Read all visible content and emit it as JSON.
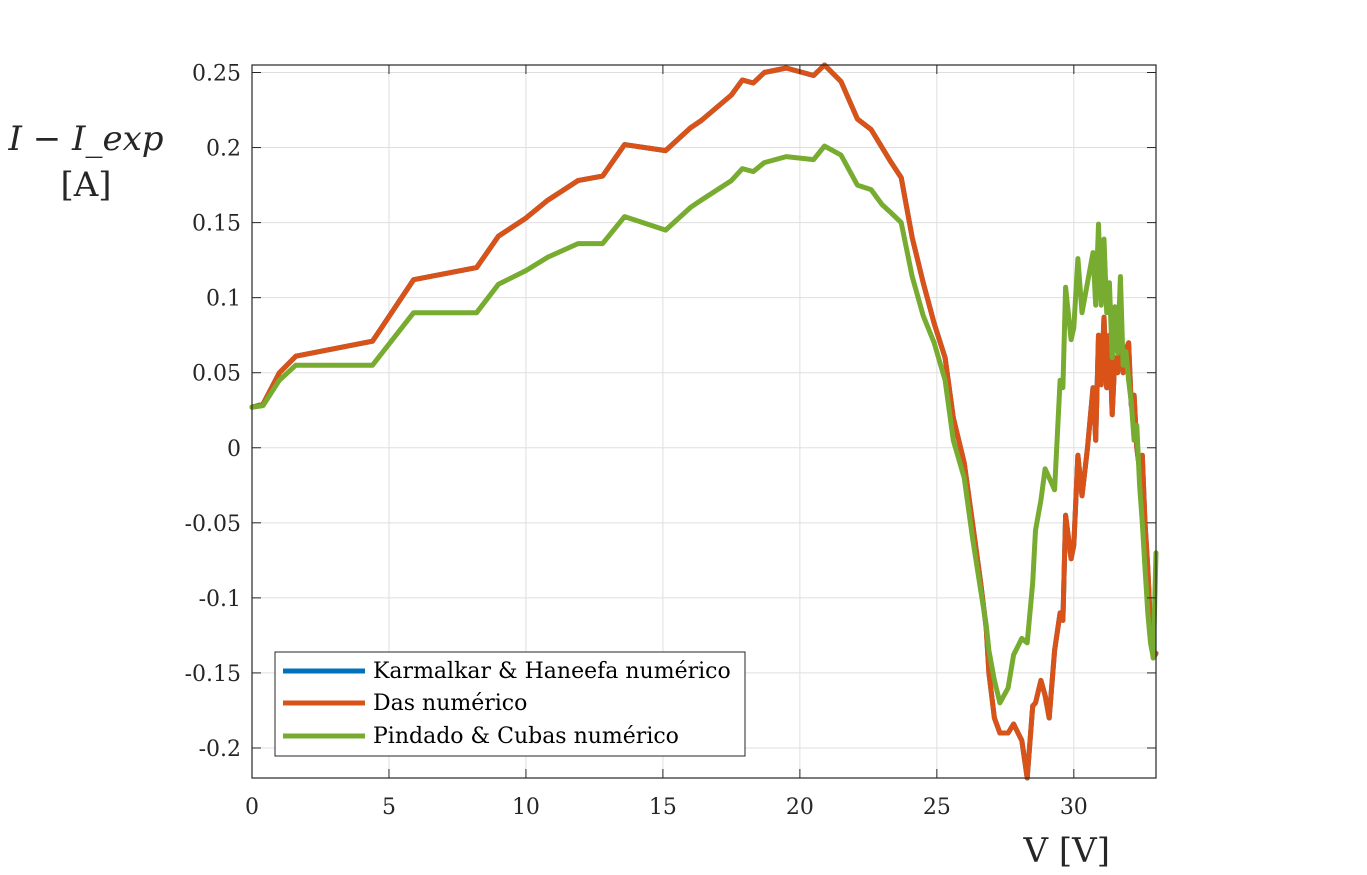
{
  "chart_data": {
    "type": "line",
    "title": "",
    "xlabel": "V [V]",
    "ylabel": [
      "I − I_exp",
      "[A]"
    ],
    "xlim": [
      0,
      33
    ],
    "ylim": [
      -0.22,
      0.255
    ],
    "x_ticks": [
      0,
      5,
      10,
      15,
      20,
      25,
      30
    ],
    "y_ticks": [
      -0.2,
      -0.15,
      -0.1,
      -0.05,
      0,
      0.05,
      0.1,
      0.15,
      0.2,
      0.25
    ],
    "x_tick_labels": [
      "0",
      "5",
      "10",
      "15",
      "20",
      "25",
      "30"
    ],
    "y_tick_labels": [
      "-0.2",
      "-0.15",
      "-0.1",
      "-0.05",
      "0",
      "0.05",
      "0.1",
      "0.15",
      "0.2",
      "0.25"
    ],
    "grid": true,
    "legend_position": "bottom-left",
    "series": [
      {
        "name": "Karmalkar & Haneefa numérico",
        "color": "#0072bd",
        "x": [
          0.0,
          0.4,
          1.0,
          1.6,
          4.4,
          5.9,
          8.2,
          9.0,
          10.0,
          10.8,
          11.9,
          12.8,
          13.6,
          15.1,
          16.0,
          16.4,
          17.5,
          17.9,
          18.3,
          18.7,
          19.5,
          20.5,
          20.9,
          21.5,
          22.1,
          22.6,
          23.0,
          23.3,
          23.7,
          24.1,
          24.5,
          24.9,
          25.3,
          25.6,
          26.0,
          26.3,
          26.6,
          26.8,
          26.9,
          27.1,
          27.3,
          27.6,
          27.8,
          28.1,
          28.3,
          28.5,
          28.6,
          28.8,
          28.95,
          29.1,
          29.3,
          29.5,
          29.6,
          29.7,
          29.9,
          30.0,
          30.15,
          30.3,
          30.5,
          30.7,
          30.8,
          30.9,
          31.0,
          31.1,
          31.2,
          31.3,
          31.4,
          31.5,
          31.6,
          31.7,
          31.8,
          31.9,
          32.0,
          32.1,
          32.2,
          32.3,
          32.4,
          32.5,
          32.6,
          32.7,
          32.8,
          32.9,
          33.0
        ],
        "y": [
          0.027,
          0.029,
          0.05,
          0.061,
          0.071,
          0.112,
          0.12,
          0.141,
          0.153,
          0.165,
          0.178,
          0.181,
          0.202,
          0.198,
          0.213,
          0.218,
          0.235,
          0.245,
          0.243,
          0.25,
          0.253,
          0.248,
          0.255,
          0.244,
          0.219,
          0.212,
          0.2,
          0.191,
          0.18,
          0.14,
          0.11,
          0.083,
          0.06,
          0.02,
          -0.01,
          -0.05,
          -0.09,
          -0.12,
          -0.15,
          -0.18,
          -0.19,
          -0.19,
          -0.184,
          -0.195,
          -0.22,
          -0.172,
          -0.17,
          -0.155,
          -0.165,
          -0.18,
          -0.135,
          -0.11,
          -0.115,
          -0.045,
          -0.074,
          -0.065,
          -0.005,
          -0.032,
          0.0,
          0.04,
          0.005,
          0.075,
          0.042,
          0.087,
          0.04,
          0.075,
          0.022,
          0.06,
          0.05,
          0.07,
          0.05,
          0.065,
          0.07,
          0.028,
          0.035,
          0.0,
          -0.015,
          -0.005,
          -0.05,
          -0.08,
          -0.12,
          -0.14,
          -0.137
        ]
      },
      {
        "name": "Das numérico",
        "color": "#d95319",
        "x": [
          0.0,
          0.4,
          1.0,
          1.6,
          4.4,
          5.9,
          8.2,
          9.0,
          10.0,
          10.8,
          11.9,
          12.8,
          13.6,
          15.1,
          16.0,
          16.4,
          17.5,
          17.9,
          18.3,
          18.7,
          19.5,
          20.5,
          20.9,
          21.5,
          22.1,
          22.6,
          23.0,
          23.3,
          23.7,
          24.1,
          24.5,
          24.9,
          25.3,
          25.6,
          26.0,
          26.3,
          26.6,
          26.8,
          26.9,
          27.1,
          27.3,
          27.6,
          27.8,
          28.1,
          28.3,
          28.5,
          28.6,
          28.8,
          28.95,
          29.1,
          29.3,
          29.5,
          29.6,
          29.7,
          29.9,
          30.0,
          30.15,
          30.3,
          30.5,
          30.7,
          30.8,
          30.9,
          31.0,
          31.1,
          31.2,
          31.3,
          31.4,
          31.5,
          31.6,
          31.7,
          31.8,
          31.9,
          32.0,
          32.1,
          32.2,
          32.3,
          32.4,
          32.5,
          32.6,
          32.7,
          32.8,
          32.9,
          33.0
        ],
        "y": [
          0.027,
          0.029,
          0.05,
          0.061,
          0.071,
          0.112,
          0.12,
          0.141,
          0.153,
          0.165,
          0.178,
          0.181,
          0.202,
          0.198,
          0.213,
          0.218,
          0.235,
          0.245,
          0.243,
          0.25,
          0.253,
          0.248,
          0.255,
          0.244,
          0.219,
          0.212,
          0.2,
          0.191,
          0.18,
          0.14,
          0.11,
          0.083,
          0.06,
          0.02,
          -0.01,
          -0.05,
          -0.09,
          -0.12,
          -0.15,
          -0.18,
          -0.19,
          -0.19,
          -0.184,
          -0.195,
          -0.22,
          -0.172,
          -0.17,
          -0.155,
          -0.165,
          -0.18,
          -0.135,
          -0.11,
          -0.115,
          -0.045,
          -0.074,
          -0.065,
          -0.005,
          -0.032,
          0.0,
          0.04,
          0.005,
          0.075,
          0.042,
          0.087,
          0.04,
          0.075,
          0.022,
          0.06,
          0.05,
          0.07,
          0.05,
          0.065,
          0.07,
          0.028,
          0.035,
          0.0,
          -0.015,
          -0.005,
          -0.05,
          -0.08,
          -0.12,
          -0.14,
          -0.137
        ]
      },
      {
        "name": "Pindado & Cubas numérico",
        "color": "#77ac30",
        "x": [
          0.0,
          0.4,
          1.0,
          1.6,
          4.4,
          5.9,
          8.2,
          9.0,
          10.0,
          10.8,
          11.9,
          12.8,
          13.6,
          15.1,
          16.0,
          16.4,
          17.5,
          17.9,
          18.3,
          18.7,
          19.5,
          20.5,
          20.9,
          21.5,
          22.1,
          22.6,
          23.0,
          23.3,
          23.7,
          24.1,
          24.5,
          24.9,
          25.3,
          25.6,
          26.0,
          26.3,
          26.6,
          26.8,
          26.9,
          27.1,
          27.3,
          27.6,
          27.8,
          28.1,
          28.3,
          28.5,
          28.6,
          28.8,
          28.95,
          29.1,
          29.3,
          29.5,
          29.6,
          29.7,
          29.9,
          30.0,
          30.15,
          30.3,
          30.5,
          30.7,
          30.8,
          30.9,
          31.0,
          31.1,
          31.2,
          31.3,
          31.4,
          31.5,
          31.6,
          31.7,
          31.8,
          31.9,
          32.0,
          32.1,
          32.2,
          32.3,
          32.4,
          32.5,
          32.6,
          32.7,
          32.8,
          32.9,
          33.0
        ],
        "y": [
          0.027,
          0.028,
          0.045,
          0.055,
          0.055,
          0.09,
          0.09,
          0.109,
          0.118,
          0.127,
          0.136,
          0.136,
          0.154,
          0.145,
          0.16,
          0.165,
          0.178,
          0.186,
          0.184,
          0.19,
          0.194,
          0.192,
          0.201,
          0.195,
          0.175,
          0.172,
          0.162,
          0.157,
          0.15,
          0.114,
          0.088,
          0.07,
          0.045,
          0.005,
          -0.02,
          -0.06,
          -0.095,
          -0.118,
          -0.135,
          -0.155,
          -0.17,
          -0.16,
          -0.138,
          -0.127,
          -0.13,
          -0.09,
          -0.055,
          -0.035,
          -0.014,
          -0.02,
          -0.028,
          0.045,
          0.04,
          0.107,
          0.072,
          0.08,
          0.126,
          0.09,
          0.11,
          0.13,
          0.095,
          0.149,
          0.095,
          0.139,
          0.09,
          0.11,
          0.06,
          0.094,
          0.063,
          0.114,
          0.055,
          0.064,
          0.045,
          0.03,
          0.005,
          0.015,
          -0.025,
          -0.05,
          -0.08,
          -0.11,
          -0.13,
          -0.14,
          -0.07
        ]
      }
    ]
  }
}
